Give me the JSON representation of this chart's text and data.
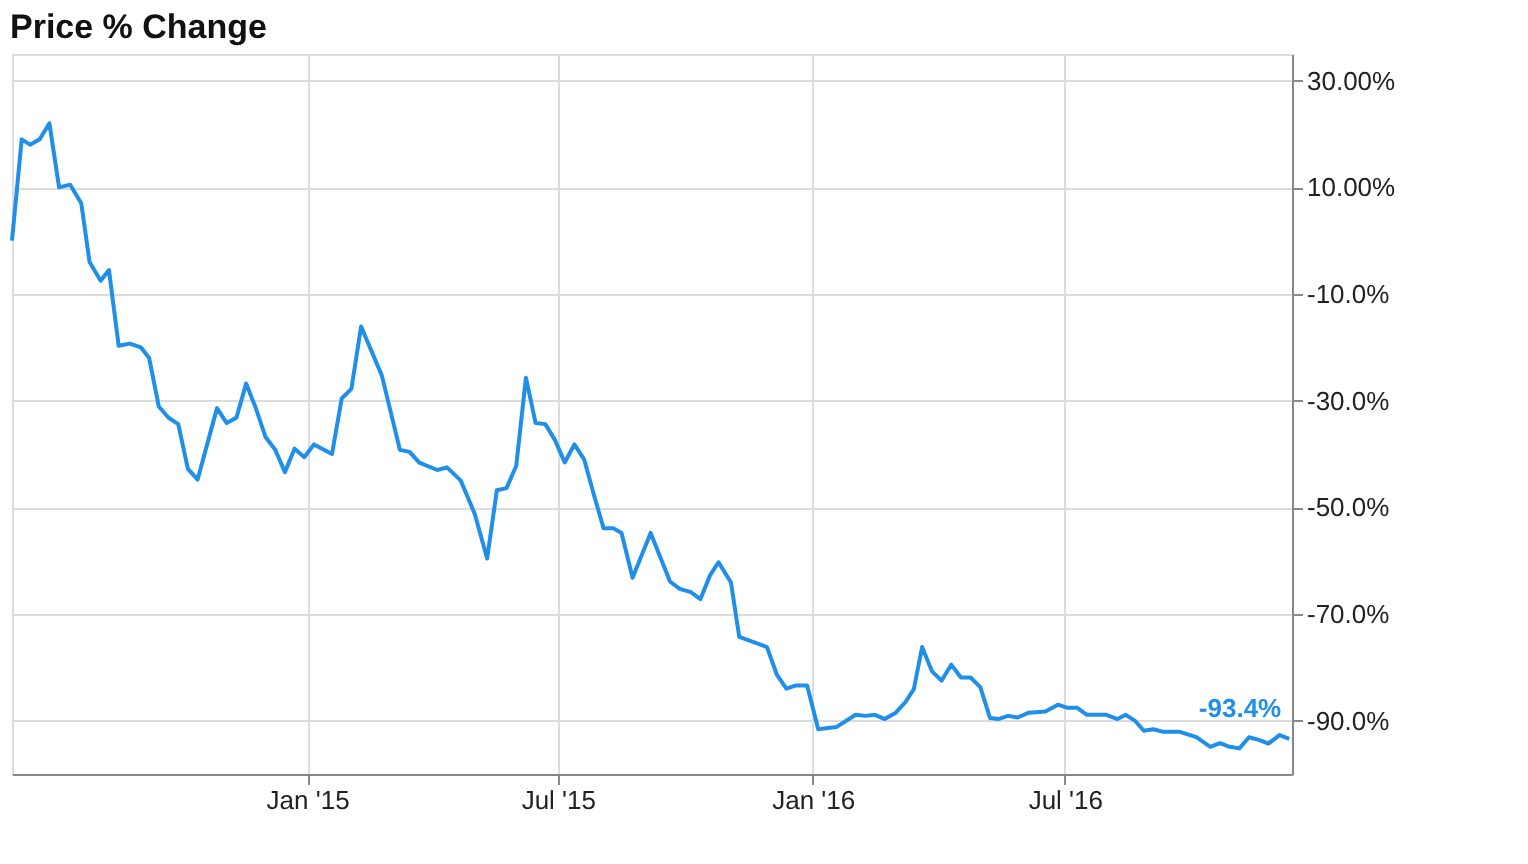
{
  "chart_data": {
    "type": "line",
    "title": "Price % Change",
    "x": [
      "2014-06-02",
      "2014-06-09",
      "2014-06-15",
      "2014-06-22",
      "2014-06-29",
      "2014-07-06",
      "2014-07-14",
      "2014-07-22",
      "2014-07-28",
      "2014-08-05",
      "2014-08-11",
      "2014-08-18",
      "2014-08-26",
      "2014-09-03",
      "2014-09-09",
      "2014-09-16",
      "2014-09-23",
      "2014-09-30",
      "2014-10-07",
      "2014-10-14",
      "2014-10-28",
      "2014-11-04",
      "2014-11-11",
      "2014-11-18",
      "2014-11-25",
      "2014-12-02",
      "2014-12-09",
      "2014-12-16",
      "2014-12-23",
      "2014-12-30",
      "2015-01-06",
      "2015-01-19",
      "2015-01-26",
      "2015-02-02",
      "2015-02-09",
      "2015-02-24",
      "2015-03-09",
      "2015-03-16",
      "2015-03-23",
      "2015-04-05",
      "2015-04-12",
      "2015-04-22",
      "2015-05-02",
      "2015-05-11",
      "2015-05-18",
      "2015-05-25",
      "2015-06-01",
      "2015-06-08",
      "2015-06-15",
      "2015-06-22",
      "2015-06-29",
      "2015-07-06",
      "2015-07-13",
      "2015-07-20",
      "2015-07-27",
      "2015-08-03",
      "2015-08-10",
      "2015-08-16",
      "2015-08-24",
      "2015-09-06",
      "2015-09-20",
      "2015-09-27",
      "2015-10-05",
      "2015-10-12",
      "2015-10-19",
      "2015-10-25",
      "2015-11-03",
      "2015-11-09",
      "2015-11-29",
      "2015-12-06",
      "2015-12-13",
      "2015-12-20",
      "2015-12-28",
      "2016-01-05",
      "2016-01-18",
      "2016-02-01",
      "2016-02-08",
      "2016-02-15",
      "2016-02-22",
      "2016-03-01",
      "2016-03-08",
      "2016-03-14",
      "2016-03-20",
      "2016-03-27",
      "2016-04-03",
      "2016-04-10",
      "2016-04-17",
      "2016-04-24",
      "2016-05-01",
      "2016-05-08",
      "2016-05-14",
      "2016-05-21",
      "2016-05-28",
      "2016-06-05",
      "2016-06-17",
      "2016-06-26",
      "2016-07-03",
      "2016-07-10",
      "2016-07-17",
      "2016-07-31",
      "2016-08-08",
      "2016-08-14",
      "2016-08-21",
      "2016-08-27",
      "2016-09-03",
      "2016-09-10",
      "2016-09-22",
      "2016-10-04",
      "2016-10-14",
      "2016-10-21",
      "2016-10-28",
      "2016-11-04",
      "2016-11-11",
      "2016-11-18",
      "2016-11-25",
      "2016-12-03",
      "2016-12-10"
    ],
    "series": [
      {
        "color": "#1f8fea",
        "values": [
          0,
          19,
          18,
          19,
          22,
          10,
          10.5,
          7,
          -4,
          -7.5,
          -5.5,
          -19.7,
          -19.3,
          -20,
          -22,
          -31.1,
          -33.2,
          -34.4,
          -42.8,
          -44.8,
          -31.4,
          -34.2,
          -33.2,
          -26.8,
          -31.4,
          -36.8,
          -39.2,
          -43.4,
          -39,
          -40.6,
          -38.2,
          -40,
          -29.6,
          -27.8,
          -16.1,
          -25.3,
          -39.2,
          -39.6,
          -41.6,
          -43,
          -42.5,
          -45,
          -51.2,
          -59.6,
          -46.8,
          -46.4,
          -42.2,
          -25.7,
          -34.2,
          -34.4,
          -37.4,
          -41.6,
          -38.2,
          -41,
          -47.6,
          -53.9,
          -53.9,
          -54.8,
          -63.2,
          -54.8,
          -63.9,
          -65.3,
          -65.9,
          -67.2,
          -62.7,
          -60.3,
          -64.1,
          -74.3,
          -76.2,
          -81.3,
          -84,
          -83.4,
          -83.4,
          -91.6,
          -91.2,
          -88.9,
          -89.1,
          -88.9,
          -89.7,
          -88.5,
          -86.5,
          -84.1,
          -76.2,
          -80.7,
          -82.5,
          -79.5,
          -81.9,
          -81.9,
          -83.7,
          -89.5,
          -89.7,
          -89.1,
          -89.4,
          -88.5,
          -88.3,
          -87,
          -87.6,
          -87.6,
          -88.9,
          -88.9,
          -89.7,
          -88.9,
          -90.1,
          -91.9,
          -91.6,
          -92.1,
          -92.1,
          -93.1,
          -94.9,
          -94.2,
          -94.9,
          -95.2,
          -93.1,
          -93.6,
          -94.3,
          -92.7,
          -93.4
        ]
      }
    ],
    "xlim": [
      "2014-06-02",
      "2016-12-12"
    ],
    "xticks": [
      {
        "value": "2015-01-01",
        "label": "Jan '15"
      },
      {
        "value": "2015-07-01",
        "label": "Jul '15"
      },
      {
        "value": "2016-01-01",
        "label": "Jan '16"
      },
      {
        "value": "2016-07-01",
        "label": "Jul '16"
      }
    ],
    "ylim": [
      -100,
      35
    ],
    "yticks": [
      {
        "value": 30,
        "label": "30.00%"
      },
      {
        "value": 10,
        "label": "10.00%"
      },
      {
        "value": -10,
        "label": "-10.0%"
      },
      {
        "value": -30,
        "label": "-30.0%"
      },
      {
        "value": -50,
        "label": "-50.0%"
      },
      {
        "value": -70,
        "label": "-70.0%"
      },
      {
        "value": -90,
        "label": "-90.0%"
      }
    ],
    "annotations": [
      {
        "text": "-93.4%",
        "x": "2016-12-10",
        "y": -93.4
      }
    ],
    "grid": true,
    "marker": "none",
    "line_style": "solid"
  }
}
